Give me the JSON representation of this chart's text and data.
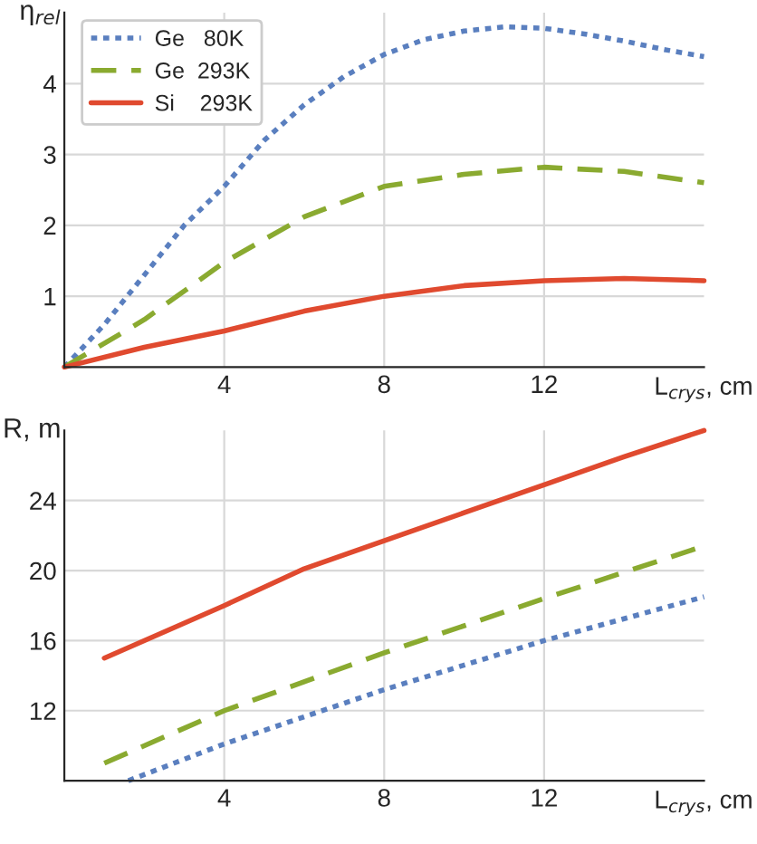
{
  "chart_data": [
    {
      "type": "line",
      "ylabel": "η$_{rel}$",
      "xlabel": "L$_{crys}$, cm",
      "xlim": [
        0,
        16
      ],
      "ylim": [
        0,
        5
      ],
      "xticks": [
        4,
        8,
        12
      ],
      "yticks": [
        1,
        2,
        3,
        4
      ],
      "grid": true,
      "legend": "top left",
      "series": [
        {
          "name": "Ge   80K",
          "color": "#5a7fbf",
          "line_style": "dotted",
          "x": [
            0,
            1,
            2,
            3,
            4,
            5,
            6,
            7,
            8,
            9,
            10,
            11,
            12,
            13,
            14,
            15,
            16
          ],
          "values": [
            0,
            0.6,
            1.3,
            2.0,
            2.55,
            3.2,
            3.7,
            4.1,
            4.41,
            4.62,
            4.74,
            4.8,
            4.78,
            4.7,
            4.6,
            4.48,
            4.38
          ]
        },
        {
          "name": "Ge  293K",
          "color": "#8aaa30",
          "line_style": "dashed",
          "x": [
            0,
            2,
            4,
            6,
            8,
            10,
            12,
            14,
            16
          ],
          "values": [
            0,
            0.67,
            1.48,
            2.12,
            2.55,
            2.72,
            2.82,
            2.76,
            2.6
          ]
        },
        {
          "name": "Si    293K",
          "color": "#e04a2f",
          "line_style": "solid",
          "x": [
            0,
            2,
            4,
            6,
            8,
            10,
            12,
            14,
            16
          ],
          "values": [
            0,
            0.28,
            0.51,
            0.79,
            1.0,
            1.15,
            1.22,
            1.25,
            1.22
          ]
        }
      ]
    },
    {
      "type": "line",
      "ylabel": "R, m",
      "xlabel": "L$_{crys}$, cm",
      "xlim": [
        0,
        16
      ],
      "ylim": [
        8,
        28
      ],
      "xticks": [
        4,
        8,
        12
      ],
      "yticks": [
        12,
        16,
        20,
        24
      ],
      "grid": true,
      "series": [
        {
          "color": "#5a7fbf",
          "line_style": "dotted",
          "x": [
            1.6,
            4,
            8,
            12,
            16
          ],
          "values": [
            8.0,
            10.1,
            13.2,
            16.0,
            18.5
          ]
        },
        {
          "color": "#8aaa30",
          "line_style": "dashed",
          "x": [
            1,
            4,
            8,
            12,
            16
          ],
          "values": [
            9.0,
            12.0,
            15.3,
            18.4,
            21.4
          ]
        },
        {
          "color": "#e04a2f",
          "line_style": "solid",
          "x": [
            1,
            4,
            6,
            8,
            10,
            12,
            14,
            16
          ],
          "values": [
            15.0,
            18.0,
            20.1,
            21.7,
            23.3,
            24.9,
            26.5,
            28.0
          ]
        }
      ]
    }
  ]
}
